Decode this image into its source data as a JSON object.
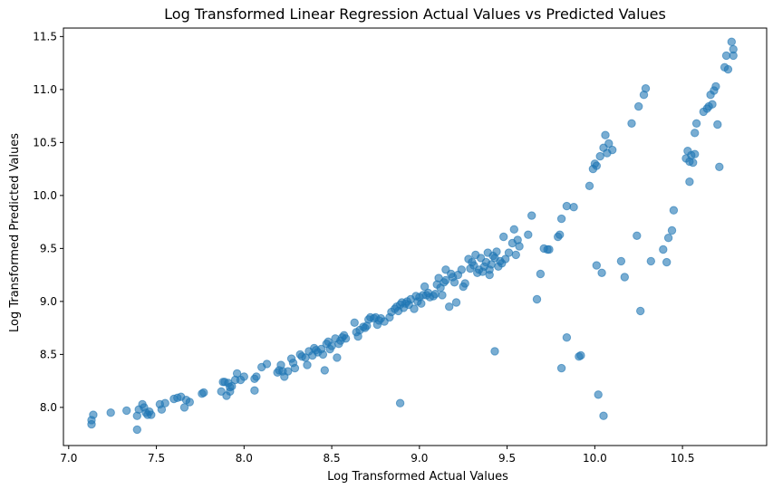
{
  "chart_data": {
    "type": "scatter",
    "title": "Log Transformed Linear Regression Actual Values vs Predicted Values",
    "xlabel": "Log Transformed Actual Values",
    "ylabel": "Log Transformed Predicted Values",
    "xlim": [
      6.97,
      10.98
    ],
    "ylim": [
      7.64,
      11.58
    ],
    "xticks": [
      "7.0",
      "7.5",
      "8.0",
      "8.5",
      "9.0",
      "9.5",
      "10.0",
      "10.5"
    ],
    "yticks": [
      "8.0",
      "8.5",
      "9.0",
      "9.5",
      "10.0",
      "10.5",
      "11.0",
      "11.5"
    ],
    "grid": false,
    "marker_color": "#1f77b4",
    "marker_alpha": 0.6,
    "series": [
      {
        "points": [
          [
            7.13,
            7.84
          ],
          [
            7.13,
            7.88
          ],
          [
            7.14,
            7.93
          ],
          [
            7.24,
            7.95
          ],
          [
            7.33,
            7.97
          ],
          [
            7.39,
            7.79
          ],
          [
            7.39,
            7.92
          ],
          [
            7.4,
            7.98
          ],
          [
            7.42,
            8.03
          ],
          [
            7.43,
            8.0
          ],
          [
            7.44,
            7.95
          ],
          [
            7.45,
            7.93
          ],
          [
            7.46,
            7.96
          ],
          [
            7.47,
            7.93
          ],
          [
            7.52,
            8.03
          ],
          [
            7.53,
            7.98
          ],
          [
            7.55,
            8.04
          ],
          [
            7.6,
            8.08
          ],
          [
            7.62,
            8.09
          ],
          [
            7.64,
            8.1
          ],
          [
            7.66,
            8.0
          ],
          [
            7.67,
            8.07
          ],
          [
            7.69,
            8.05
          ],
          [
            7.76,
            8.13
          ],
          [
            7.77,
            8.14
          ],
          [
            7.87,
            8.15
          ],
          [
            7.88,
            8.24
          ],
          [
            7.89,
            8.24
          ],
          [
            7.9,
            8.11
          ],
          [
            7.91,
            8.23
          ],
          [
            7.92,
            8.15
          ],
          [
            7.92,
            8.19
          ],
          [
            7.93,
            8.2
          ],
          [
            7.95,
            8.26
          ],
          [
            7.96,
            8.32
          ],
          [
            7.98,
            8.26
          ],
          [
            8.0,
            8.29
          ],
          [
            8.06,
            8.16
          ],
          [
            8.06,
            8.27
          ],
          [
            8.07,
            8.29
          ],
          [
            8.1,
            8.38
          ],
          [
            8.13,
            8.41
          ],
          [
            8.19,
            8.33
          ],
          [
            8.2,
            8.35
          ],
          [
            8.21,
            8.4
          ],
          [
            8.22,
            8.34
          ],
          [
            8.23,
            8.29
          ],
          [
            8.25,
            8.34
          ],
          [
            8.27,
            8.46
          ],
          [
            8.28,
            8.42
          ],
          [
            8.29,
            8.37
          ],
          [
            8.32,
            8.5
          ],
          [
            8.33,
            8.48
          ],
          [
            8.35,
            8.47
          ],
          [
            8.36,
            8.4
          ],
          [
            8.37,
            8.53
          ],
          [
            8.39,
            8.49
          ],
          [
            8.4,
            8.56
          ],
          [
            8.41,
            8.54
          ],
          [
            8.42,
            8.52
          ],
          [
            8.44,
            8.55
          ],
          [
            8.45,
            8.5
          ],
          [
            8.46,
            8.35
          ],
          [
            8.47,
            8.6
          ],
          [
            8.48,
            8.62
          ],
          [
            8.49,
            8.55
          ],
          [
            8.5,
            8.58
          ],
          [
            8.52,
            8.65
          ],
          [
            8.53,
            8.47
          ],
          [
            8.54,
            8.6
          ],
          [
            8.55,
            8.63
          ],
          [
            8.56,
            8.66
          ],
          [
            8.57,
            8.68
          ],
          [
            8.58,
            8.65
          ],
          [
            8.63,
            8.8
          ],
          [
            8.64,
            8.71
          ],
          [
            8.65,
            8.67
          ],
          [
            8.66,
            8.73
          ],
          [
            8.68,
            8.76
          ],
          [
            8.69,
            8.75
          ],
          [
            8.7,
            8.77
          ],
          [
            8.71,
            8.83
          ],
          [
            8.72,
            8.85
          ],
          [
            8.74,
            8.84
          ],
          [
            8.75,
            8.85
          ],
          [
            8.76,
            8.78
          ],
          [
            8.77,
            8.82
          ],
          [
            8.78,
            8.84
          ],
          [
            8.8,
            8.81
          ],
          [
            8.83,
            8.85
          ],
          [
            8.84,
            8.9
          ],
          [
            8.86,
            8.93
          ],
          [
            8.87,
            8.95
          ],
          [
            8.88,
            8.91
          ],
          [
            8.89,
            8.97
          ],
          [
            8.89,
            8.04
          ],
          [
            8.9,
            8.99
          ],
          [
            8.91,
            8.94
          ],
          [
            8.92,
            8.98
          ],
          [
            8.93,
            9.0
          ],
          [
            8.94,
            8.97
          ],
          [
            8.95,
            9.02
          ],
          [
            8.97,
            8.93
          ],
          [
            8.98,
            9.05
          ],
          [
            8.99,
            9.0
          ],
          [
            9.0,
            9.04
          ],
          [
            9.01,
            8.98
          ],
          [
            9.02,
            9.06
          ],
          [
            9.03,
            9.14
          ],
          [
            9.04,
            9.06
          ],
          [
            9.05,
            9.08
          ],
          [
            9.06,
            9.04
          ],
          [
            9.08,
            9.05
          ],
          [
            9.09,
            9.07
          ],
          [
            9.1,
            9.16
          ],
          [
            9.11,
            9.22
          ],
          [
            9.12,
            9.13
          ],
          [
            9.13,
            9.06
          ],
          [
            9.14,
            9.18
          ],
          [
            9.15,
            9.3
          ],
          [
            9.15,
            9.2
          ],
          [
            9.17,
            8.95
          ],
          [
            9.18,
            9.26
          ],
          [
            9.19,
            9.23
          ],
          [
            9.2,
            9.18
          ],
          [
            9.21,
            8.99
          ],
          [
            9.22,
            9.25
          ],
          [
            9.24,
            9.3
          ],
          [
            9.25,
            9.14
          ],
          [
            9.26,
            9.17
          ],
          [
            9.28,
            9.4
          ],
          [
            9.29,
            9.31
          ],
          [
            9.3,
            9.37
          ],
          [
            9.31,
            9.34
          ],
          [
            9.32,
            9.44
          ],
          [
            9.33,
            9.27
          ],
          [
            9.34,
            9.3
          ],
          [
            9.35,
            9.41
          ],
          [
            9.36,
            9.28
          ],
          [
            9.37,
            9.33
          ],
          [
            9.38,
            9.37
          ],
          [
            9.39,
            9.46
          ],
          [
            9.4,
            9.3
          ],
          [
            9.4,
            9.25
          ],
          [
            9.41,
            9.35
          ],
          [
            9.42,
            9.43
          ],
          [
            9.43,
            8.53
          ],
          [
            9.43,
            9.41
          ],
          [
            9.44,
            9.47
          ],
          [
            9.45,
            9.33
          ],
          [
            9.46,
            9.38
          ],
          [
            9.47,
            9.36
          ],
          [
            9.48,
            9.61
          ],
          [
            9.49,
            9.4
          ],
          [
            9.51,
            9.46
          ],
          [
            9.53,
            9.55
          ],
          [
            9.54,
            9.68
          ],
          [
            9.55,
            9.44
          ],
          [
            9.56,
            9.58
          ],
          [
            9.57,
            9.52
          ],
          [
            9.62,
            9.63
          ],
          [
            9.64,
            9.81
          ],
          [
            9.67,
            9.02
          ],
          [
            9.69,
            9.26
          ],
          [
            9.71,
            9.5
          ],
          [
            9.73,
            9.49
          ],
          [
            9.74,
            9.49
          ],
          [
            9.79,
            9.61
          ],
          [
            9.8,
            9.63
          ],
          [
            9.81,
            8.37
          ],
          [
            9.81,
            9.78
          ],
          [
            9.84,
            8.66
          ],
          [
            9.84,
            9.9
          ],
          [
            9.88,
            9.89
          ],
          [
            9.91,
            8.48
          ],
          [
            9.92,
            8.49
          ],
          [
            9.97,
            10.09
          ],
          [
            9.99,
            10.25
          ],
          [
            10.0,
            10.3
          ],
          [
            10.01,
            9.34
          ],
          [
            10.01,
            10.28
          ],
          [
            10.02,
            8.12
          ],
          [
            10.03,
            10.37
          ],
          [
            10.04,
            9.27
          ],
          [
            10.05,
            7.92
          ],
          [
            10.05,
            10.45
          ],
          [
            10.06,
            10.57
          ],
          [
            10.07,
            10.4
          ],
          [
            10.08,
            10.49
          ],
          [
            10.1,
            10.43
          ],
          [
            10.15,
            9.38
          ],
          [
            10.17,
            9.23
          ],
          [
            10.21,
            10.68
          ],
          [
            10.24,
            9.62
          ],
          [
            10.25,
            10.84
          ],
          [
            10.26,
            8.91
          ],
          [
            10.28,
            10.95
          ],
          [
            10.29,
            11.01
          ],
          [
            10.32,
            9.38
          ],
          [
            10.39,
            9.49
          ],
          [
            10.41,
            9.37
          ],
          [
            10.42,
            9.6
          ],
          [
            10.44,
            9.67
          ],
          [
            10.45,
            9.86
          ],
          [
            10.52,
            10.35
          ],
          [
            10.53,
            10.42
          ],
          [
            10.54,
            10.13
          ],
          [
            10.54,
            10.32
          ],
          [
            10.55,
            10.38
          ],
          [
            10.56,
            10.31
          ],
          [
            10.57,
            10.39
          ],
          [
            10.57,
            10.59
          ],
          [
            10.58,
            10.68
          ],
          [
            10.62,
            10.79
          ],
          [
            10.64,
            10.82
          ],
          [
            10.65,
            10.84
          ],
          [
            10.66,
            10.95
          ],
          [
            10.67,
            10.86
          ],
          [
            10.68,
            10.99
          ],
          [
            10.69,
            11.03
          ],
          [
            10.7,
            10.67
          ],
          [
            10.71,
            10.27
          ],
          [
            10.74,
            11.21
          ],
          [
            10.75,
            11.32
          ],
          [
            10.76,
            11.19
          ],
          [
            10.78,
            11.45
          ],
          [
            10.79,
            11.32
          ],
          [
            10.79,
            11.38
          ]
        ]
      }
    ]
  }
}
